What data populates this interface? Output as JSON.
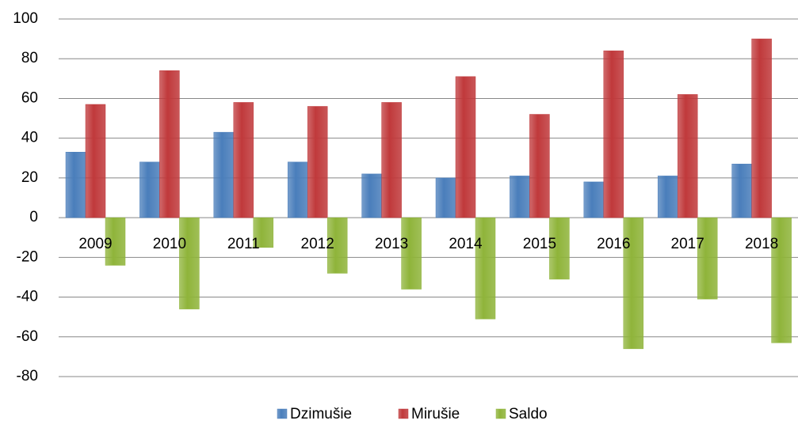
{
  "chart_data": {
    "type": "bar",
    "categories": [
      "2009",
      "2010",
      "2011",
      "2012",
      "2013",
      "2014",
      "2015",
      "2016",
      "2017",
      "2018"
    ],
    "series": [
      {
        "name": "Dzimušie",
        "color": "#4a7ebb",
        "values": [
          33,
          28,
          43,
          28,
          22,
          20,
          21,
          18,
          21,
          27
        ]
      },
      {
        "name": "Mirušie",
        "color": "#c0393b",
        "values": [
          57,
          74,
          58,
          56,
          58,
          71,
          52,
          84,
          62,
          90
        ]
      },
      {
        "name": "Saldo",
        "color": "#8fb43a",
        "values": [
          -24,
          -46,
          -15,
          -28,
          -36,
          -51,
          -31,
          -66,
          -41,
          -63
        ]
      }
    ],
    "ylim": [
      -80,
      100
    ],
    "yticks": [
      -80,
      -60,
      -40,
      -20,
      0,
      20,
      40,
      60,
      80,
      100
    ],
    "grid": true,
    "legend": "bottom"
  }
}
